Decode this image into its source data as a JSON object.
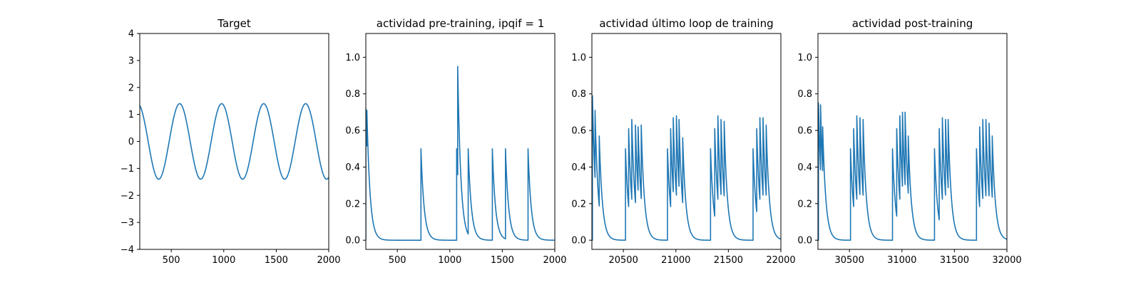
{
  "colors": {
    "series": "#1f77b4",
    "axes": "#000000",
    "background": "#ffffff"
  },
  "chart_data": [
    {
      "type": "line",
      "title": "Target",
      "xlim": [
        200,
        2000
      ],
      "ylim": [
        -4,
        4
      ],
      "xticks": [
        500,
        1000,
        1500,
        2000
      ],
      "yticks": [
        -4,
        -3,
        -2,
        -1,
        0,
        1,
        2,
        3,
        4
      ],
      "ytick_labels": [
        "−4",
        "−3",
        "−2",
        "−1",
        "0",
        "1",
        "2",
        "3",
        "4"
      ],
      "series": [
        {
          "kind": "sine",
          "amplitude": 1.4,
          "period": 400,
          "x_of_first_peak": 180,
          "x_range": [
            200,
            2000
          ]
        }
      ]
    },
    {
      "type": "line",
      "title": "actividad pre-training, ipqif = 1",
      "xlim": [
        200,
        2000
      ],
      "ylim": [
        -0.05,
        1.13
      ],
      "xticks": [
        500,
        1000,
        1500,
        2000
      ],
      "yticks": [
        0.0,
        0.2,
        0.4,
        0.6,
        0.8,
        1.0
      ],
      "ytick_labels": [
        "0.0",
        "0.2",
        "0.4",
        "0.6",
        "0.8",
        "1.0"
      ],
      "baseline": 0.0,
      "decay_constant": 30,
      "spikes": [
        {
          "x": 200,
          "y": 0.72
        },
        {
          "x": 210,
          "y": 0.71
        },
        {
          "x": 725,
          "y": 0.5
        },
        {
          "x": 1065,
          "y": 0.5
        },
        {
          "x": 1075,
          "y": 0.95
        },
        {
          "x": 1175,
          "y": 0.5
        },
        {
          "x": 1405,
          "y": 0.5
        },
        {
          "x": 1530,
          "y": 0.5
        },
        {
          "x": 1745,
          "y": 0.5
        }
      ]
    },
    {
      "type": "line",
      "title": "actividad último loop de training",
      "xlim": [
        20200,
        22000
      ],
      "ylim": [
        -0.05,
        1.13
      ],
      "xticks": [
        20500,
        21000,
        21500,
        22000
      ],
      "yticks": [
        0.0,
        0.2,
        0.4,
        0.6,
        0.8,
        1.0
      ],
      "ytick_labels": [
        "0.0",
        "0.2",
        "0.4",
        "0.6",
        "0.8",
        "1.0"
      ],
      "baseline": 0.0,
      "decay_constant": 30,
      "spikes": [
        {
          "x": 20205,
          "y": 0.79
        },
        {
          "x": 20230,
          "y": 0.71
        },
        {
          "x": 20270,
          "y": 0.57
        },
        {
          "x": 20520,
          "y": 0.5
        },
        {
          "x": 20550,
          "y": 0.61
        },
        {
          "x": 20580,
          "y": 0.66
        },
        {
          "x": 20615,
          "y": 0.63
        },
        {
          "x": 20640,
          "y": 0.62
        },
        {
          "x": 20670,
          "y": 0.63
        },
        {
          "x": 20920,
          "y": 0.5
        },
        {
          "x": 20950,
          "y": 0.61
        },
        {
          "x": 20975,
          "y": 0.67
        },
        {
          "x": 21005,
          "y": 0.68
        },
        {
          "x": 21030,
          "y": 0.66
        },
        {
          "x": 21065,
          "y": 0.56
        },
        {
          "x": 21330,
          "y": 0.5
        },
        {
          "x": 21370,
          "y": 0.61
        },
        {
          "x": 21400,
          "y": 0.68
        },
        {
          "x": 21430,
          "y": 0.66
        },
        {
          "x": 21460,
          "y": 0.65
        },
        {
          "x": 21735,
          "y": 0.5
        },
        {
          "x": 21770,
          "y": 0.61
        },
        {
          "x": 21800,
          "y": 0.67
        },
        {
          "x": 21830,
          "y": 0.67
        },
        {
          "x": 21860,
          "y": 0.63
        }
      ]
    },
    {
      "type": "line",
      "title": "actividad post-training",
      "xlim": [
        30200,
        32000
      ],
      "ylim": [
        -0.05,
        1.13
      ],
      "xticks": [
        30500,
        31000,
        31500,
        32000
      ],
      "yticks": [
        0.0,
        0.2,
        0.4,
        0.6,
        0.8,
        1.0
      ],
      "ytick_labels": [
        "0.0",
        "0.2",
        "0.4",
        "0.6",
        "0.8",
        "1.0"
      ],
      "baseline": 0.0,
      "decay_constant": 30,
      "spikes": [
        {
          "x": 30205,
          "y": 0.75
        },
        {
          "x": 30225,
          "y": 0.74
        },
        {
          "x": 30245,
          "y": 0.62
        },
        {
          "x": 30510,
          "y": 0.5
        },
        {
          "x": 30540,
          "y": 0.61
        },
        {
          "x": 30570,
          "y": 0.68
        },
        {
          "x": 30600,
          "y": 0.67
        },
        {
          "x": 30630,
          "y": 0.66
        },
        {
          "x": 30910,
          "y": 0.5
        },
        {
          "x": 30950,
          "y": 0.61
        },
        {
          "x": 30980,
          "y": 0.68
        },
        {
          "x": 31005,
          "y": 0.7
        },
        {
          "x": 31030,
          "y": 0.7
        },
        {
          "x": 31060,
          "y": 0.57
        },
        {
          "x": 31310,
          "y": 0.5
        },
        {
          "x": 31355,
          "y": 0.61
        },
        {
          "x": 31385,
          "y": 0.67
        },
        {
          "x": 31415,
          "y": 0.66
        },
        {
          "x": 31440,
          "y": 0.66
        },
        {
          "x": 31710,
          "y": 0.5
        },
        {
          "x": 31740,
          "y": 0.62
        },
        {
          "x": 31770,
          "y": 0.66
        },
        {
          "x": 31800,
          "y": 0.66
        },
        {
          "x": 31830,
          "y": 0.64
        },
        {
          "x": 31860,
          "y": 0.57
        }
      ]
    }
  ]
}
